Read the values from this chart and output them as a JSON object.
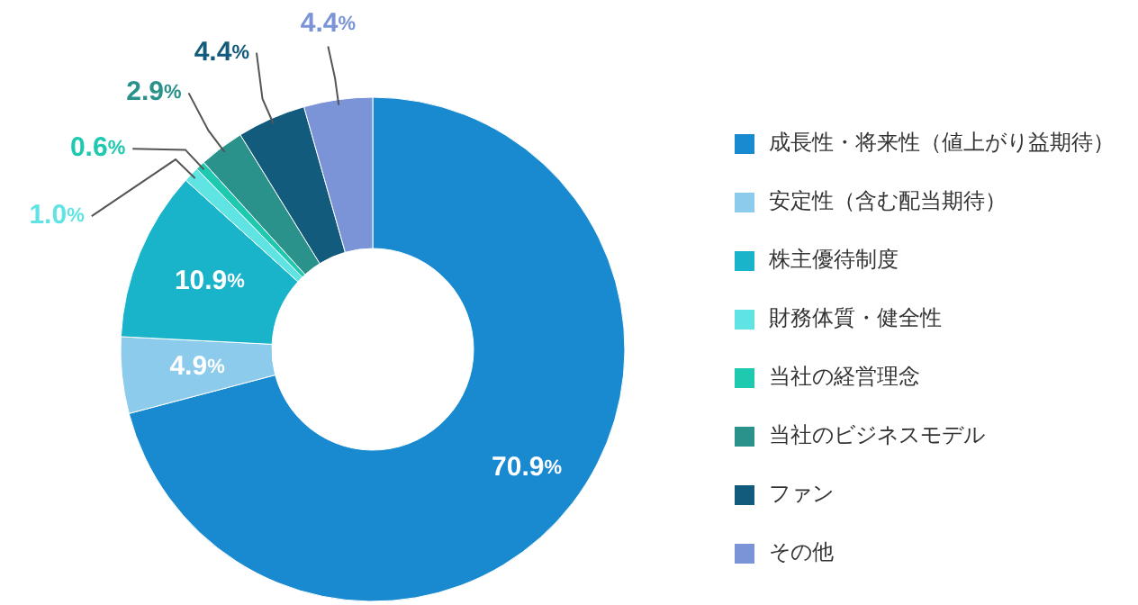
{
  "chart_data": {
    "type": "donut",
    "categories": [
      "成長性・将来性（値上がり益期待）",
      "安定性（含む配当期待）",
      "株主優待制度",
      "財務体質・健全性",
      "当社の経営理念",
      "当社のビジネスモデル",
      "ファン",
      "その他"
    ],
    "values": [
      70.9,
      4.9,
      10.9,
      1.0,
      0.6,
      2.9,
      4.4,
      4.4
    ],
    "colors": [
      "#1a8ad0",
      "#8ccbec",
      "#19b3ca",
      "#5fe3e3",
      "#1ec9b0",
      "#2a918b",
      "#125b7c",
      "#7b93d7"
    ],
    "value_labels": [
      "70.9%",
      "4.9%",
      "10.9%",
      "1.0%",
      "0.6%",
      "2.9%",
      "4.4%",
      "4.4%"
    ],
    "legend": "right"
  }
}
